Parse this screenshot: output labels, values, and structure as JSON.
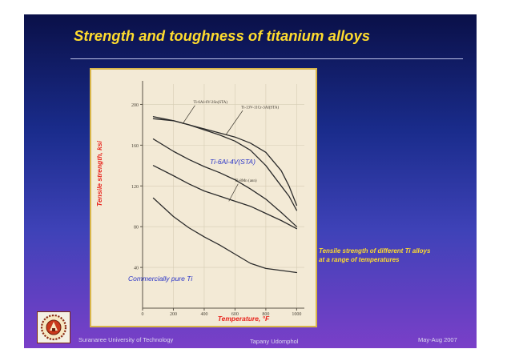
{
  "slide": {
    "title": "Strength and toughness of titanium alloys",
    "caption_line1": "Tensile strength of different Ti alloys",
    "caption_line2": "at a range of temperatures",
    "footer_left": "Suranaree University of Technology",
    "footer_center": "Tapany Udomphol",
    "footer_right": "May-Aug   2007"
  },
  "colors": {
    "title": "#ffdc2e",
    "annotation_red": "#e8231c",
    "annotation_blue": "#2a34c8",
    "figure_background": "#f3ead6",
    "figure_border": "#d9b64a",
    "curve": "#2b2b2b"
  },
  "chart_data": {
    "type": "line",
    "xlabel": "Temperature, °F",
    "ylabel": "Tensile strength, ksi",
    "xlim": [
      0,
      1050
    ],
    "ylim": [
      0,
      220
    ],
    "xticks": [
      "0",
      "200",
      "400",
      "600",
      "800",
      "1000"
    ],
    "yticks": [
      "40",
      "80",
      "120",
      "160",
      "200"
    ],
    "series": [
      {
        "name": "Ti-6Al-6V-2Sn(STA)",
        "x": [
          70,
          200,
          300,
          400,
          500,
          600,
          700,
          800,
          900,
          950,
          1000
        ],
        "y": [
          188,
          184,
          180,
          175,
          170,
          164,
          155,
          140,
          120,
          110,
          96
        ]
      },
      {
        "name": "Ti-13V-11Cr-3Al(STA)",
        "x": [
          70,
          200,
          300,
          400,
          500,
          600,
          700,
          800,
          900,
          950,
          1000
        ],
        "y": [
          186,
          184,
          180,
          176,
          172,
          168,
          162,
          153,
          135,
          120,
          101
        ]
      },
      {
        "name": "Ti-6Al-4V(STA)",
        "x": [
          70,
          200,
          300,
          400,
          500,
          600,
          700,
          800,
          900,
          950,
          1000
        ],
        "y": [
          166,
          154,
          146,
          139,
          133,
          126,
          117,
          107,
          94,
          87,
          80
        ]
      },
      {
        "name": "Ti-8Mn (ann)",
        "x": [
          70,
          200,
          300,
          400,
          500,
          600,
          700,
          800,
          900,
          1000
        ],
        "y": [
          140,
          130,
          122,
          115,
          110,
          105,
          100,
          93,
          86,
          78
        ]
      },
      {
        "name": "Commercially pure Ti",
        "x": [
          70,
          200,
          300,
          400,
          500,
          600,
          700,
          800,
          900,
          1000
        ],
        "y": [
          108,
          90,
          79,
          70,
          62,
          53,
          44,
          39,
          37,
          35
        ]
      }
    ],
    "annotations": {
      "ti64": "Ti-6Al-4V(STA)",
      "cp_ti": "Commercially pure Ti",
      "label_ti66": "Ti-6Al-6V-2Sn(STA)",
      "label_ti13": "Ti-13V-11Cr-3Al(STA)",
      "label_ti8mn": "Ti-8Mn (ann)"
    }
  }
}
